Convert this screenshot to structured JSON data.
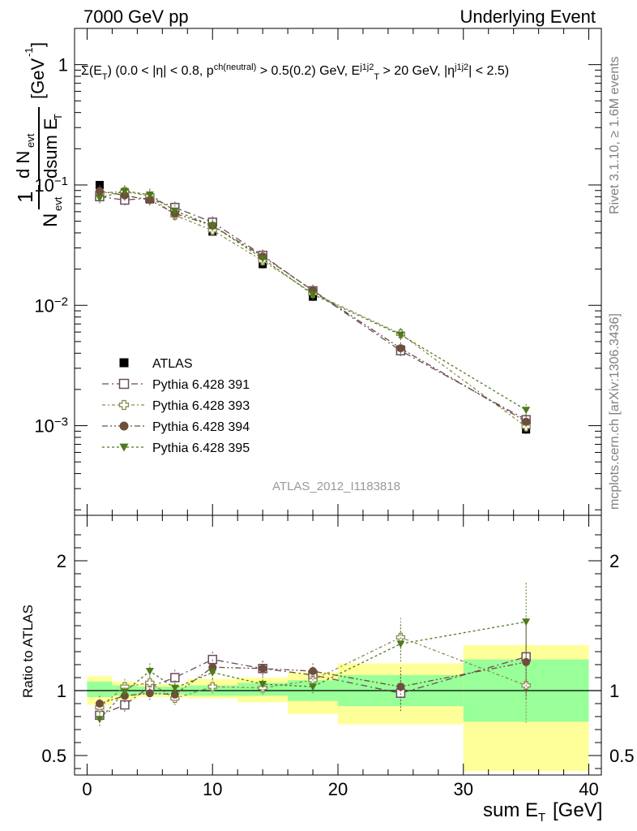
{
  "header": {
    "left": "7000 GeV pp",
    "right": "Underlying Event"
  },
  "side_labels": {
    "rivet": "Rivet 3.1.10, ≥ 1.6M events",
    "mcplots": "mcplots.cern.ch [arXiv:1306.3436]"
  },
  "watermark": "ATLAS_2012_I1183818",
  "colors": {
    "atlas": "#000000",
    "p391": "#6b4a5e",
    "p393": "#8a8a50",
    "p394": "#6e4f3a",
    "p395": "#4e7a1c",
    "band_inner": "#99ff99",
    "band_outer": "#ffff99"
  },
  "chart_data": [
    {
      "type": "scatter",
      "panel": "main",
      "title": "Σ(E_T) (0.0 < |η| < 0.8, p^{ch(neutral)} > 0.5(0.2) GeV, E_T^{j1j2} > 20 GeV, |η^{j1j2}| < 2.5)",
      "ylabel": "1/N_evt dN_evt/dsum E_T [GeV^-1]",
      "xlim": [
        -1,
        41
      ],
      "ylim": [
        0.00018,
        2.0
      ],
      "yscale": "log",
      "y_ticks": [
        {
          "value": 1,
          "label": "1"
        },
        {
          "value": 0.1,
          "label": "10^-1"
        },
        {
          "value": 0.01,
          "label": "10^-2"
        },
        {
          "value": 0.001,
          "label": "10^-3"
        }
      ],
      "legend_position": "lower-left",
      "series": [
        {
          "name": "ATLAS",
          "marker": "filled-square",
          "x": [
            1,
            3,
            5,
            7,
            10,
            14,
            18,
            25,
            35
          ],
          "values": [
            0.1,
            0.086,
            0.076,
            0.059,
            0.041,
            0.022,
            0.0118,
            0.0043,
            0.00093
          ]
        },
        {
          "name": "Pythia 6.428 391",
          "marker": "open-square",
          "x": [
            1,
            3,
            5,
            7,
            10,
            14,
            18,
            25,
            35
          ],
          "values": [
            0.08,
            0.075,
            0.078,
            0.065,
            0.049,
            0.026,
            0.0132,
            0.0042,
            0.00112
          ]
        },
        {
          "name": "Pythia 6.428 393",
          "marker": "open-cross",
          "x": [
            1,
            3,
            5,
            7,
            10,
            14,
            18,
            25,
            35
          ],
          "values": [
            0.086,
            0.088,
            0.081,
            0.056,
            0.042,
            0.0235,
            0.0126,
            0.0058,
            0.00098
          ]
        },
        {
          "name": "Pythia 6.428 394",
          "marker": "filled-circle",
          "x": [
            1,
            3,
            5,
            7,
            10,
            14,
            18,
            25,
            35
          ],
          "values": [
            0.089,
            0.082,
            0.075,
            0.058,
            0.046,
            0.0255,
            0.0133,
            0.0044,
            0.00108
          ]
        },
        {
          "name": "Pythia 6.428 395",
          "marker": "filled-triangle-down",
          "x": [
            1,
            3,
            5,
            7,
            10,
            14,
            18,
            25,
            35
          ],
          "values": [
            0.078,
            0.089,
            0.083,
            0.061,
            0.046,
            0.0245,
            0.0123,
            0.0057,
            0.00135
          ]
        }
      ]
    },
    {
      "type": "scatter",
      "panel": "ratio",
      "xlabel": "sum E_T [GeV]",
      "ylabel": "Ratio to ATLAS",
      "xlim": [
        -1,
        41
      ],
      "ylim": [
        0.35,
        2.35
      ],
      "x_ticks": [
        0,
        10,
        20,
        30,
        40
      ],
      "y_ticks": [
        0.5,
        1,
        2
      ],
      "reference_line": 1,
      "uncertainty_bands": {
        "edges": [
          0,
          2,
          4,
          6,
          8,
          12,
          16,
          20,
          30,
          40
        ],
        "inner": [
          [
            0.95,
            1.07
          ],
          [
            0.96,
            1.04
          ],
          [
            0.97,
            1.03
          ],
          [
            0.97,
            1.03
          ],
          [
            0.96,
            1.04
          ],
          [
            0.96,
            1.06
          ],
          [
            0.92,
            1.08
          ],
          [
            0.88,
            1.12
          ],
          [
            0.76,
            1.24
          ]
        ],
        "outer": [
          [
            0.89,
            1.11
          ],
          [
            0.93,
            1.07
          ],
          [
            0.95,
            1.05
          ],
          [
            0.95,
            1.05
          ],
          [
            0.94,
            1.09
          ],
          [
            0.91,
            1.1
          ],
          [
            0.82,
            1.14
          ],
          [
            0.74,
            1.21
          ],
          [
            0.38,
            1.35
          ]
        ]
      },
      "series": [
        {
          "name": "Pythia 6.428 391",
          "x": [
            1,
            3,
            5,
            7,
            10,
            14,
            18,
            25,
            35
          ],
          "values": [
            0.81,
            0.89,
            1.03,
            1.1,
            1.24,
            1.17,
            1.12,
            0.98,
            1.26
          ]
        },
        {
          "name": "Pythia 6.428 393",
          "x": [
            1,
            3,
            5,
            7,
            10,
            14,
            18,
            25,
            35
          ],
          "values": [
            0.87,
            1.03,
            1.06,
            0.94,
            1.03,
            1.02,
            1.08,
            1.41,
            1.04
          ]
        },
        {
          "name": "Pythia 6.428 394",
          "x": [
            1,
            3,
            5,
            7,
            10,
            14,
            18,
            25,
            35
          ],
          "values": [
            0.9,
            0.96,
            0.98,
            0.97,
            1.18,
            1.17,
            1.15,
            1.03,
            1.22
          ]
        },
        {
          "name": "Pythia 6.428 395",
          "x": [
            1,
            3,
            5,
            7,
            10,
            14,
            18,
            25,
            35
          ],
          "values": [
            0.78,
            0.99,
            1.15,
            1.02,
            1.14,
            1.05,
            1.03,
            1.36,
            1.53
          ]
        }
      ]
    }
  ]
}
